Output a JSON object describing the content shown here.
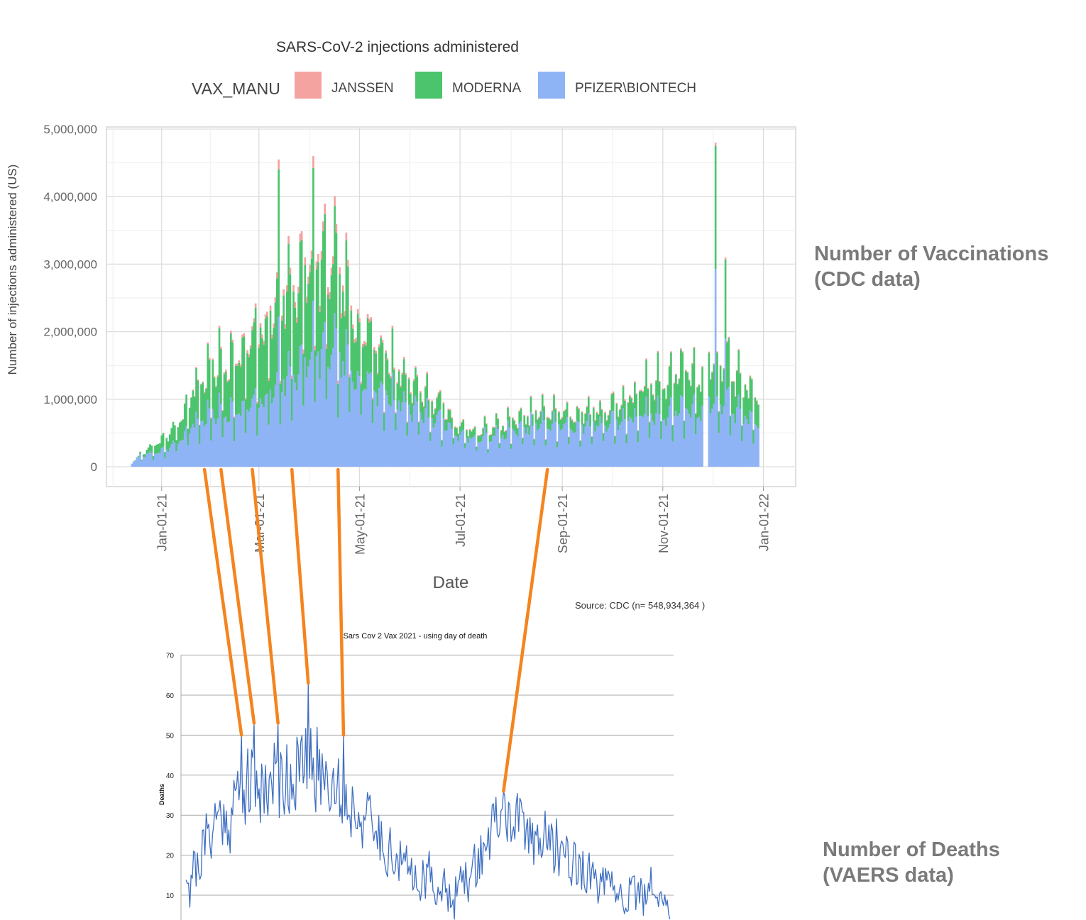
{
  "chart_data": [
    {
      "type": "bar",
      "stacked": true,
      "title": "SARS-CoV-2 injections administered",
      "xlabel": "Date",
      "ylabel": "Number of injections administered (US)",
      "source_note": "Source: CDC (n= 548,934,364 )",
      "legend": {
        "title": "VAX_MANU",
        "placement": "top"
      },
      "x_ticks": [
        "Jan-01-21",
        "Mar-01-21",
        "May-01-21",
        "Jul-01-21",
        "Sep-01-21",
        "Nov-01-21",
        "Jan-01-22"
      ],
      "x_tick_dates": [
        "2021-01-01",
        "2021-03-01",
        "2021-05-01",
        "2021-07-01",
        "2021-09-01",
        "2021-11-01",
        "2022-01-01"
      ],
      "xlim": [
        "2020-12-08",
        "2022-01-15"
      ],
      "y_ticks": [
        "0",
        "1,000,000",
        "2,000,000",
        "3,000,000",
        "4,000,000",
        "5,000,000"
      ],
      "ylim": [
        0,
        5000000
      ],
      "grid": true,
      "series": [
        {
          "name": "PFIZER\\BIONTECH",
          "color": "#8fb4f5"
        },
        {
          "name": "MODERNA",
          "color": "#4cc46e"
        },
        {
          "name": "JANSSEN",
          "color": "#f4a3a0"
        }
      ],
      "anchors": [
        {
          "date": "2020-12-14",
          "total": 50000
        },
        {
          "date": "2020-12-20",
          "total": 200000
        },
        {
          "date": "2020-12-28",
          "total": 300000
        },
        {
          "date": "2021-01-05",
          "total": 450000
        },
        {
          "date": "2021-01-12",
          "total": 700000
        },
        {
          "date": "2021-01-20",
          "total": 1100000
        },
        {
          "date": "2021-01-30",
          "total": 1350000
        },
        {
          "date": "2021-02-08",
          "total": 1550000
        },
        {
          "date": "2021-02-16",
          "total": 1500000
        },
        {
          "date": "2021-02-24",
          "total": 1800000
        },
        {
          "date": "2021-03-03",
          "total": 2000000
        },
        {
          "date": "2021-03-10",
          "total": 2300000
        },
        {
          "date": "2021-03-18",
          "total": 2550000
        },
        {
          "date": "2021-03-28",
          "total": 2850000
        },
        {
          "date": "2021-04-06",
          "total": 3000000
        },
        {
          "date": "2021-04-14",
          "total": 2900000
        },
        {
          "date": "2021-04-22",
          "total": 2500000
        },
        {
          "date": "2021-05-01",
          "total": 2150000
        },
        {
          "date": "2021-05-12",
          "total": 1750000
        },
        {
          "date": "2021-05-24",
          "total": 1400000
        },
        {
          "date": "2021-06-05",
          "total": 1150000
        },
        {
          "date": "2021-06-18",
          "total": 900000
        },
        {
          "date": "2021-07-01",
          "total": 600000
        },
        {
          "date": "2021-07-12",
          "total": 500000
        },
        {
          "date": "2021-07-25",
          "total": 600000
        },
        {
          "date": "2021-08-08",
          "total": 700000
        },
        {
          "date": "2021-08-22",
          "total": 800000
        },
        {
          "date": "2021-09-05",
          "total": 750000
        },
        {
          "date": "2021-09-20",
          "total": 800000
        },
        {
          "date": "2021-10-05",
          "total": 900000
        },
        {
          "date": "2021-10-20",
          "total": 1100000
        },
        {
          "date": "2021-11-01",
          "total": 1250000
        },
        {
          "date": "2021-11-10",
          "total": 1350000
        },
        {
          "date": "2021-11-18",
          "total": 1400000
        },
        {
          "date": "2021-11-24",
          "total": 1300000
        },
        {
          "date": "2021-12-01",
          "total": 1650000
        },
        {
          "date": "2021-12-10",
          "total": 1500000
        },
        {
          "date": "2021-12-20",
          "total": 1150000
        },
        {
          "date": "2021-12-29",
          "total": 1000000
        }
      ],
      "weekly_peak_factor": 1.5,
      "gaps": [
        "2021-11-26",
        "2021-11-27",
        "2021-11-28"
      ],
      "spikes": [
        {
          "date": "2021-03-13",
          "total": 4550000
        },
        {
          "date": "2021-04-03",
          "total": 4600000
        },
        {
          "date": "2021-12-03",
          "total": 4800000
        },
        {
          "date": "2021-12-09",
          "total": 3100000
        }
      ],
      "mix": [
        {
          "date": "2020-12-14",
          "pfizer": 1.0,
          "janssen": 0.0
        },
        {
          "date": "2020-12-28",
          "pfizer": 0.6,
          "janssen": 0.0
        },
        {
          "date": "2021-03-05",
          "pfizer": 0.47,
          "janssen": 0.03
        },
        {
          "date": "2021-04-10",
          "pfizer": 0.55,
          "janssen": 0.04
        },
        {
          "date": "2021-05-15",
          "pfizer": 0.65,
          "janssen": 0.02
        },
        {
          "date": "2021-07-01",
          "pfizer": 0.78,
          "janssen": 0.02
        },
        {
          "date": "2021-10-01",
          "pfizer": 0.75,
          "janssen": 0.02
        },
        {
          "date": "2021-11-01",
          "pfizer": 0.6,
          "janssen": 0.01
        },
        {
          "date": "2021-12-31",
          "pfizer": 0.62,
          "janssen": 0.01
        }
      ]
    },
    {
      "type": "line",
      "title": "Sars Cov 2 Vax 2021 - using day of death",
      "ylabel": "Deaths",
      "y_ticks": [
        "10",
        "20",
        "30",
        "40",
        "50",
        "60",
        "70"
      ],
      "ylim": [
        5,
        70
      ],
      "xlim": [
        "2020-12-10",
        "2022-01-05"
      ],
      "grid": true,
      "series": [
        {
          "name": "",
          "color": "#3f6fc2",
          "anchors": [
            {
              "date": "2020-12-14",
              "value": 17
            },
            {
              "date": "2020-12-22",
              "value": 16
            },
            {
              "date": "2020-12-30",
              "value": 24
            },
            {
              "date": "2021-01-08",
              "value": 30
            },
            {
              "date": "2021-01-18",
              "value": 29
            },
            {
              "date": "2021-01-26",
              "value": 38
            },
            {
              "date": "2021-02-05",
              "value": 37
            },
            {
              "date": "2021-02-15",
              "value": 38
            },
            {
              "date": "2021-02-25",
              "value": 39
            },
            {
              "date": "2021-03-08",
              "value": 40
            },
            {
              "date": "2021-03-20",
              "value": 42
            },
            {
              "date": "2021-03-30",
              "value": 41
            },
            {
              "date": "2021-04-08",
              "value": 40
            },
            {
              "date": "2021-04-20",
              "value": 33
            },
            {
              "date": "2021-04-30",
              "value": 31
            },
            {
              "date": "2021-05-15",
              "value": 25
            },
            {
              "date": "2021-06-01",
              "value": 18
            },
            {
              "date": "2021-06-20",
              "value": 14
            },
            {
              "date": "2021-07-10",
              "value": 11
            },
            {
              "date": "2021-07-25",
              "value": 13
            },
            {
              "date": "2021-08-05",
              "value": 20
            },
            {
              "date": "2021-08-15",
              "value": 27
            },
            {
              "date": "2021-08-26",
              "value": 30
            },
            {
              "date": "2021-09-08",
              "value": 26
            },
            {
              "date": "2021-09-25",
              "value": 24
            },
            {
              "date": "2021-10-10",
              "value": 21
            },
            {
              "date": "2021-10-25",
              "value": 16
            },
            {
              "date": "2021-11-10",
              "value": 12
            },
            {
              "date": "2021-11-25",
              "value": 10
            },
            {
              "date": "2021-12-10",
              "value": 10
            },
            {
              "date": "2022-01-02",
              "value": 7
            }
          ],
          "peaks": [
            {
              "date": "2020-12-17",
              "value": 7
            },
            {
              "date": "2020-12-20",
              "value": 21
            },
            {
              "date": "2021-01-27",
              "value": 50
            },
            {
              "date": "2021-02-06",
              "value": 53
            },
            {
              "date": "2021-02-25",
              "value": 53
            },
            {
              "date": "2021-03-21",
              "value": 63
            },
            {
              "date": "2021-04-18",
              "value": 50
            },
            {
              "date": "2021-06-25",
              "value": 21
            },
            {
              "date": "2021-08-23",
              "value": 36
            },
            {
              "date": "2021-10-01",
              "value": 26
            },
            {
              "date": "2021-12-18",
              "value": 17
            },
            {
              "date": "2021-07-15",
              "value": 4
            }
          ]
        }
      ]
    }
  ],
  "annotations": {
    "connector_color": "#f5841f",
    "connectors": [
      {
        "date": "2021-01-27",
        "deaths": 50
      },
      {
        "date": "2021-02-06",
        "deaths": 53
      },
      {
        "date": "2021-02-25",
        "deaths": 53
      },
      {
        "date": "2021-03-21",
        "deaths": 63
      },
      {
        "date": "2021-04-18",
        "deaths": 50
      },
      {
        "date": "2021-08-23",
        "deaths": 36
      }
    ]
  },
  "side_labels": {
    "vaccinations": [
      "Number of Vaccinations",
      "(CDC data)"
    ],
    "deaths": [
      "Number of Deaths",
      "(VAERS data)"
    ]
  }
}
